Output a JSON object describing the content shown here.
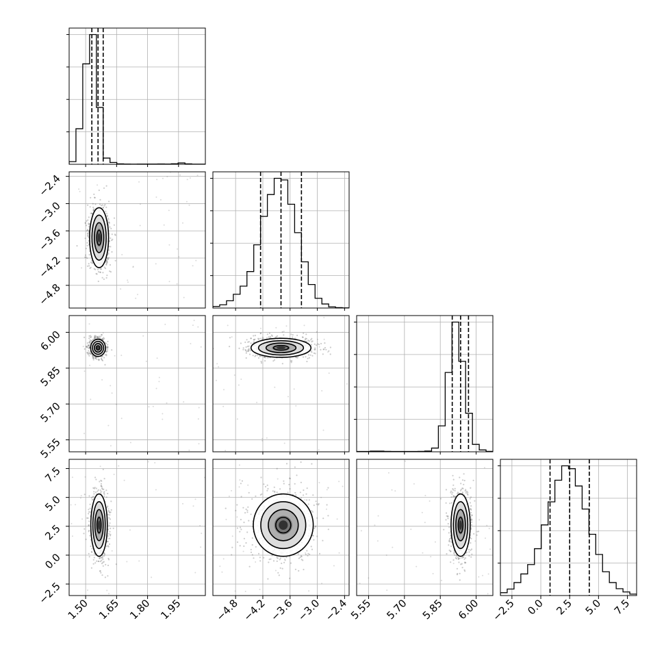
{
  "chart_data": {
    "type": "corner",
    "params": [
      {
        "id": "p1",
        "range": [
          1.42,
          2.08
        ],
        "ticks": [
          "1.50",
          "1.65",
          "1.80",
          "1.95"
        ],
        "tick_values": [
          1.5,
          1.65,
          1.8,
          1.95
        ]
      },
      {
        "id": "p2",
        "range": [
          -5.3,
          -2.3
        ],
        "ticks": [
          "−4.8",
          "−4.2",
          "−3.6",
          "−3.0",
          "−2.4"
        ],
        "tick_values": [
          -4.8,
          -4.2,
          -3.6,
          -3.0,
          -2.4
        ]
      },
      {
        "id": "p3",
        "range": [
          5.5,
          6.07
        ],
        "ticks": [
          "5.55",
          "5.70",
          "5.85",
          "6.00"
        ],
        "tick_values": [
          5.55,
          5.7,
          5.85,
          6.0
        ]
      },
      {
        "id": "p4",
        "range": [
          -3.5,
          8.3
        ],
        "ticks": [
          "−2.5",
          "0.0",
          "2.5",
          "5.0",
          "7.5"
        ],
        "tick_values": [
          -2.5,
          0.0,
          2.5,
          5.0,
          7.5
        ]
      }
    ],
    "histograms": [
      {
        "param": "p1",
        "edges": [
          1.42,
          1.453,
          1.486,
          1.519,
          1.552,
          1.585,
          1.618,
          1.651,
          1.684,
          1.717,
          1.75,
          1.783,
          1.816,
          1.849,
          1.882,
          1.915,
          1.948,
          1.981,
          2.014,
          2.047,
          2.08
        ],
        "counts": [
          30,
          400,
          1130,
          1460,
          640,
          70,
          20,
          5,
          3,
          2,
          3,
          3,
          3,
          4,
          3,
          6,
          15,
          5,
          2,
          2
        ],
        "quantiles": [
          1.53,
          1.56,
          1.585
        ]
      },
      {
        "param": "p2",
        "edges": [
          -5.3,
          -5.15,
          -5.0,
          -4.85,
          -4.7,
          -4.55,
          -4.4,
          -4.25,
          -4.1,
          -3.95,
          -3.8,
          -3.65,
          -3.5,
          -3.35,
          -3.2,
          -3.05,
          -2.9,
          -2.75,
          -2.6,
          -2.45,
          -2.3
        ],
        "counts": [
          20,
          40,
          90,
          170,
          270,
          450,
          780,
          1130,
          1400,
          1600,
          1580,
          1280,
          930,
          570,
          290,
          120,
          50,
          15,
          5,
          2
        ],
        "quantiles": [
          -4.25,
          -3.8,
          -3.35
        ]
      },
      {
        "param": "p3",
        "edges": [
          5.5,
          5.5285,
          5.557,
          5.5855,
          5.614,
          5.6425,
          5.671,
          5.6995,
          5.728,
          5.7565,
          5.785,
          5.8135,
          5.842,
          5.8705,
          5.899,
          5.9275,
          5.956,
          5.9845,
          6.013,
          6.0415,
          6.07
        ],
        "counts": [
          4,
          4,
          9,
          9,
          5,
          4,
          4,
          4,
          4,
          5,
          10,
          50,
          350,
          1070,
          1750,
          1220,
          520,
          100,
          25,
          5
        ],
        "quantiles": [
          5.9,
          5.935,
          5.968
        ]
      },
      {
        "param": "p4",
        "edges": [
          -3.5,
          -2.91,
          -2.32,
          -1.73,
          -1.14,
          -0.55,
          0.04,
          0.63,
          1.22,
          1.81,
          2.4,
          2.99,
          3.58,
          4.17,
          4.76,
          5.35,
          5.94,
          6.53,
          7.12,
          7.71,
          8.3
        ],
        "counts": [
          40,
          90,
          180,
          300,
          430,
          650,
          980,
          1300,
          1600,
          1800,
          1760,
          1520,
          1200,
          850,
          570,
          330,
          180,
          95,
          50,
          20
        ],
        "quantiles": [
          0.8,
          2.5,
          4.2
        ]
      }
    ],
    "joint_peaks": [
      {
        "x_param": "p1",
        "y_param": "p2",
        "center": [
          1.565,
          -3.75
        ],
        "sd": [
          0.023,
          0.33
        ]
      },
      {
        "x_param": "p1",
        "y_param": "p3",
        "center": [
          1.56,
          5.935
        ],
        "sd": [
          0.018,
          0.018
        ]
      },
      {
        "x_param": "p2",
        "y_param": "p3",
        "center": [
          -3.8,
          5.935
        ],
        "sd": [
          0.33,
          0.02
        ]
      },
      {
        "x_param": "p1",
        "y_param": "p4",
        "center": [
          1.565,
          2.6
        ],
        "sd": [
          0.02,
          1.35
        ]
      },
      {
        "x_param": "p2",
        "y_param": "p4",
        "center": [
          -3.75,
          2.6
        ],
        "sd": [
          0.33,
          1.35
        ]
      },
      {
        "x_param": "p3",
        "y_param": "p4",
        "center": [
          5.935,
          2.6
        ],
        "sd": [
          0.02,
          1.35
        ]
      }
    ],
    "contour_levels_sigma": [
      0.5,
      1.0,
      1.5,
      2.0
    ],
    "grid": true
  }
}
